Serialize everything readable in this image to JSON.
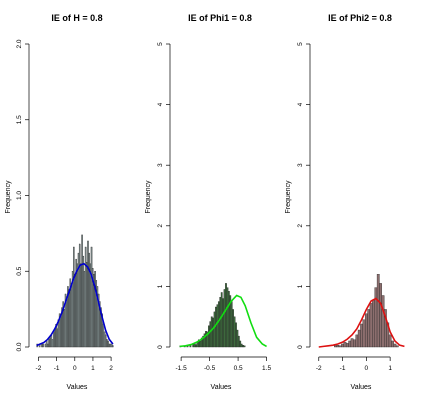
{
  "chart_data": [
    {
      "type": "bar",
      "title": "IE of H = 0.8",
      "xlabel": "Values",
      "ylabel": "Frequency",
      "xlim": [
        -2.3,
        2.6
      ],
      "ylim": [
        0,
        2.0
      ],
      "x_ticks": [
        -2,
        -1,
        0,
        1,
        2
      ],
      "x_tick_labels": [
        "-2",
        "-1",
        "0",
        "1",
        "2"
      ],
      "y_ticks": [
        0,
        0.5,
        1.0,
        1.5,
        2.0
      ],
      "y_tick_labels": [
        "0.0",
        "0.5",
        "1.0",
        "1.5",
        "2.0"
      ],
      "bar_color": "#7f8c8c",
      "curve_color": "#0000cc",
      "bin_start": -2.1,
      "bin_width": 0.065,
      "values": [
        0.02,
        0.0,
        0.02,
        0.0,
        0.02,
        0.02,
        0.0,
        0.02,
        0.04,
        0.02,
        0.05,
        0.06,
        0.08,
        0.05,
        0.1,
        0.12,
        0.15,
        0.12,
        0.18,
        0.22,
        0.2,
        0.26,
        0.3,
        0.25,
        0.35,
        0.32,
        0.4,
        0.38,
        0.45,
        0.42,
        0.5,
        0.66,
        0.48,
        0.58,
        0.55,
        0.62,
        0.68,
        0.55,
        0.74,
        0.6,
        0.5,
        0.66,
        0.56,
        0.7,
        0.62,
        0.55,
        0.66,
        0.52,
        0.48,
        0.5,
        0.44,
        0.4,
        0.35,
        0.3,
        0.26,
        0.22,
        0.15,
        0.1,
        0.08,
        0.05,
        0.04,
        0.02,
        0.02,
        0.02,
        0.01
      ],
      "density": {
        "x": [
          -2.1,
          -1.9,
          -1.7,
          -1.5,
          -1.3,
          -1.1,
          -0.9,
          -0.7,
          -0.5,
          -0.3,
          -0.1,
          0.1,
          0.3,
          0.5,
          0.7,
          0.9,
          1.1,
          1.3,
          1.5,
          1.7,
          1.9,
          2.1
        ],
        "y": [
          0.01,
          0.02,
          0.03,
          0.05,
          0.08,
          0.12,
          0.17,
          0.23,
          0.3,
          0.37,
          0.44,
          0.5,
          0.54,
          0.55,
          0.53,
          0.48,
          0.4,
          0.3,
          0.2,
          0.11,
          0.05,
          0.02
        ]
      }
    },
    {
      "type": "bar",
      "title": "IE of Phi1 = 0.8",
      "xlabel": "Values",
      "ylabel": "Frequency",
      "xlim": [
        -1.75,
        1.55
      ],
      "ylim": [
        0,
        5
      ],
      "x_ticks": [
        -1.5,
        -0.5,
        0.5,
        1.5
      ],
      "x_tick_labels": [
        "-1.5",
        "-0.5",
        "0.5",
        "1.5"
      ],
      "y_ticks": [
        0,
        1,
        2,
        3,
        4,
        5
      ],
      "y_tick_labels": [
        "0",
        "1",
        "2",
        "3",
        "4",
        "5"
      ],
      "bar_color": "#3e6b3e",
      "curve_color": "#11dd11",
      "bin_start": -1.55,
      "bin_width": 0.05,
      "values": [
        0.02,
        0.0,
        0.0,
        0.02,
        0.0,
        0.02,
        0.0,
        0.03,
        0.0,
        0.05,
        0.06,
        0.04,
        0.08,
        0.12,
        0.1,
        0.15,
        0.18,
        0.22,
        0.26,
        0.25,
        0.35,
        0.42,
        0.5,
        0.48,
        0.58,
        0.66,
        0.7,
        0.75,
        0.82,
        0.9,
        0.8,
        0.95,
        1.05,
        0.98,
        0.92,
        0.85,
        0.75,
        0.62,
        0.5,
        0.4,
        0.28,
        0.18,
        0.1,
        0.05,
        0.03,
        0.02
      ],
      "density": {
        "x": [
          -1.55,
          -1.35,
          -1.15,
          -0.95,
          -0.75,
          -0.55,
          -0.35,
          -0.15,
          0.05,
          0.25,
          0.45,
          0.6,
          0.75,
          0.95,
          1.15,
          1.35,
          1.5
        ],
        "y": [
          0.01,
          0.02,
          0.04,
          0.08,
          0.14,
          0.22,
          0.32,
          0.45,
          0.6,
          0.75,
          0.85,
          0.82,
          0.68,
          0.4,
          0.16,
          0.05,
          0.01
        ]
      }
    },
    {
      "type": "bar",
      "title": "IE of Phi2 = 0.8",
      "xlabel": "Values",
      "ylabel": "Frequency",
      "xlim": [
        -2.2,
        1.75
      ],
      "ylim": [
        0,
        5
      ],
      "x_ticks": [
        -2,
        -1,
        0,
        1
      ],
      "x_tick_labels": [
        "-2",
        "-1",
        "0",
        "1"
      ],
      "y_ticks": [
        0,
        1,
        2,
        3,
        4,
        5
      ],
      "y_tick_labels": [
        "0",
        "1",
        "2",
        "3",
        "4",
        "5"
      ],
      "bar_color": "#8c6e6e",
      "curve_color": "#dd1111",
      "bin_start": -1.35,
      "bin_width": 0.1,
      "values": [
        0.02,
        0.03,
        0.02,
        0.05,
        0.08,
        0.06,
        0.1,
        0.14,
        0.12,
        0.2,
        0.28,
        0.38,
        0.45,
        0.55,
        0.62,
        0.72,
        0.78,
        0.98,
        1.2,
        1.05,
        0.85,
        0.62,
        0.4,
        0.2,
        0.1,
        0.05,
        0.02
      ],
      "density": {
        "x": [
          -2.0,
          -1.8,
          -1.6,
          -1.4,
          -1.2,
          -1.0,
          -0.8,
          -0.6,
          -0.4,
          -0.2,
          0.0,
          0.2,
          0.4,
          0.6,
          0.8,
          1.0,
          1.2,
          1.4,
          1.6
        ],
        "y": [
          0.0,
          0.01,
          0.02,
          0.03,
          0.05,
          0.08,
          0.13,
          0.2,
          0.3,
          0.45,
          0.62,
          0.76,
          0.8,
          0.72,
          0.5,
          0.25,
          0.1,
          0.03,
          0.01
        ]
      }
    }
  ]
}
